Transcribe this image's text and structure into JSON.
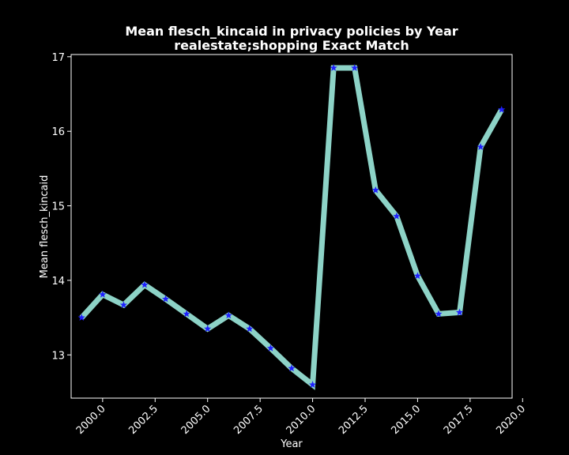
{
  "chart_data": {
    "type": "line",
    "title": "Mean flesch_kincaid in privacy policies by Year",
    "subtitle": "realestate;shopping Exact Match",
    "xlabel": "Year",
    "ylabel": "Mean flesch_kincaid",
    "xlim": [
      1998.5,
      2019.5
    ],
    "ylim": [
      12.42,
      17.03
    ],
    "x_ticks": [
      2000.0,
      2002.5,
      2005.0,
      2007.5,
      2010.0,
      2012.5,
      2015.0,
      2017.5,
      2020.0
    ],
    "x_tick_labels": [
      "2000.0",
      "2002.5",
      "2005.0",
      "2007.5",
      "2010.0",
      "2012.5",
      "2015.0",
      "2017.5",
      "2020.0"
    ],
    "y_ticks": [
      13,
      14,
      15,
      16,
      17
    ],
    "y_tick_labels": [
      "13",
      "14",
      "15",
      "16",
      "17"
    ],
    "grid": false,
    "line_color": "#8dd3c7",
    "marker_color": "#1f1fff",
    "background": "#000000",
    "series": [
      {
        "x": [
          1999,
          2000,
          2001,
          2002,
          2003,
          2004,
          2005,
          2006,
          2007,
          2008,
          2009,
          2010,
          2011,
          2012,
          2013,
          2014,
          2015,
          2016,
          2017,
          2018,
          2019
        ],
        "values": [
          13.5,
          13.81,
          13.67,
          13.94,
          13.75,
          13.55,
          13.35,
          13.53,
          13.35,
          13.09,
          12.82,
          12.6,
          16.85,
          16.85,
          15.21,
          14.86,
          14.06,
          13.55,
          13.57,
          15.79,
          16.29
        ]
      }
    ]
  }
}
